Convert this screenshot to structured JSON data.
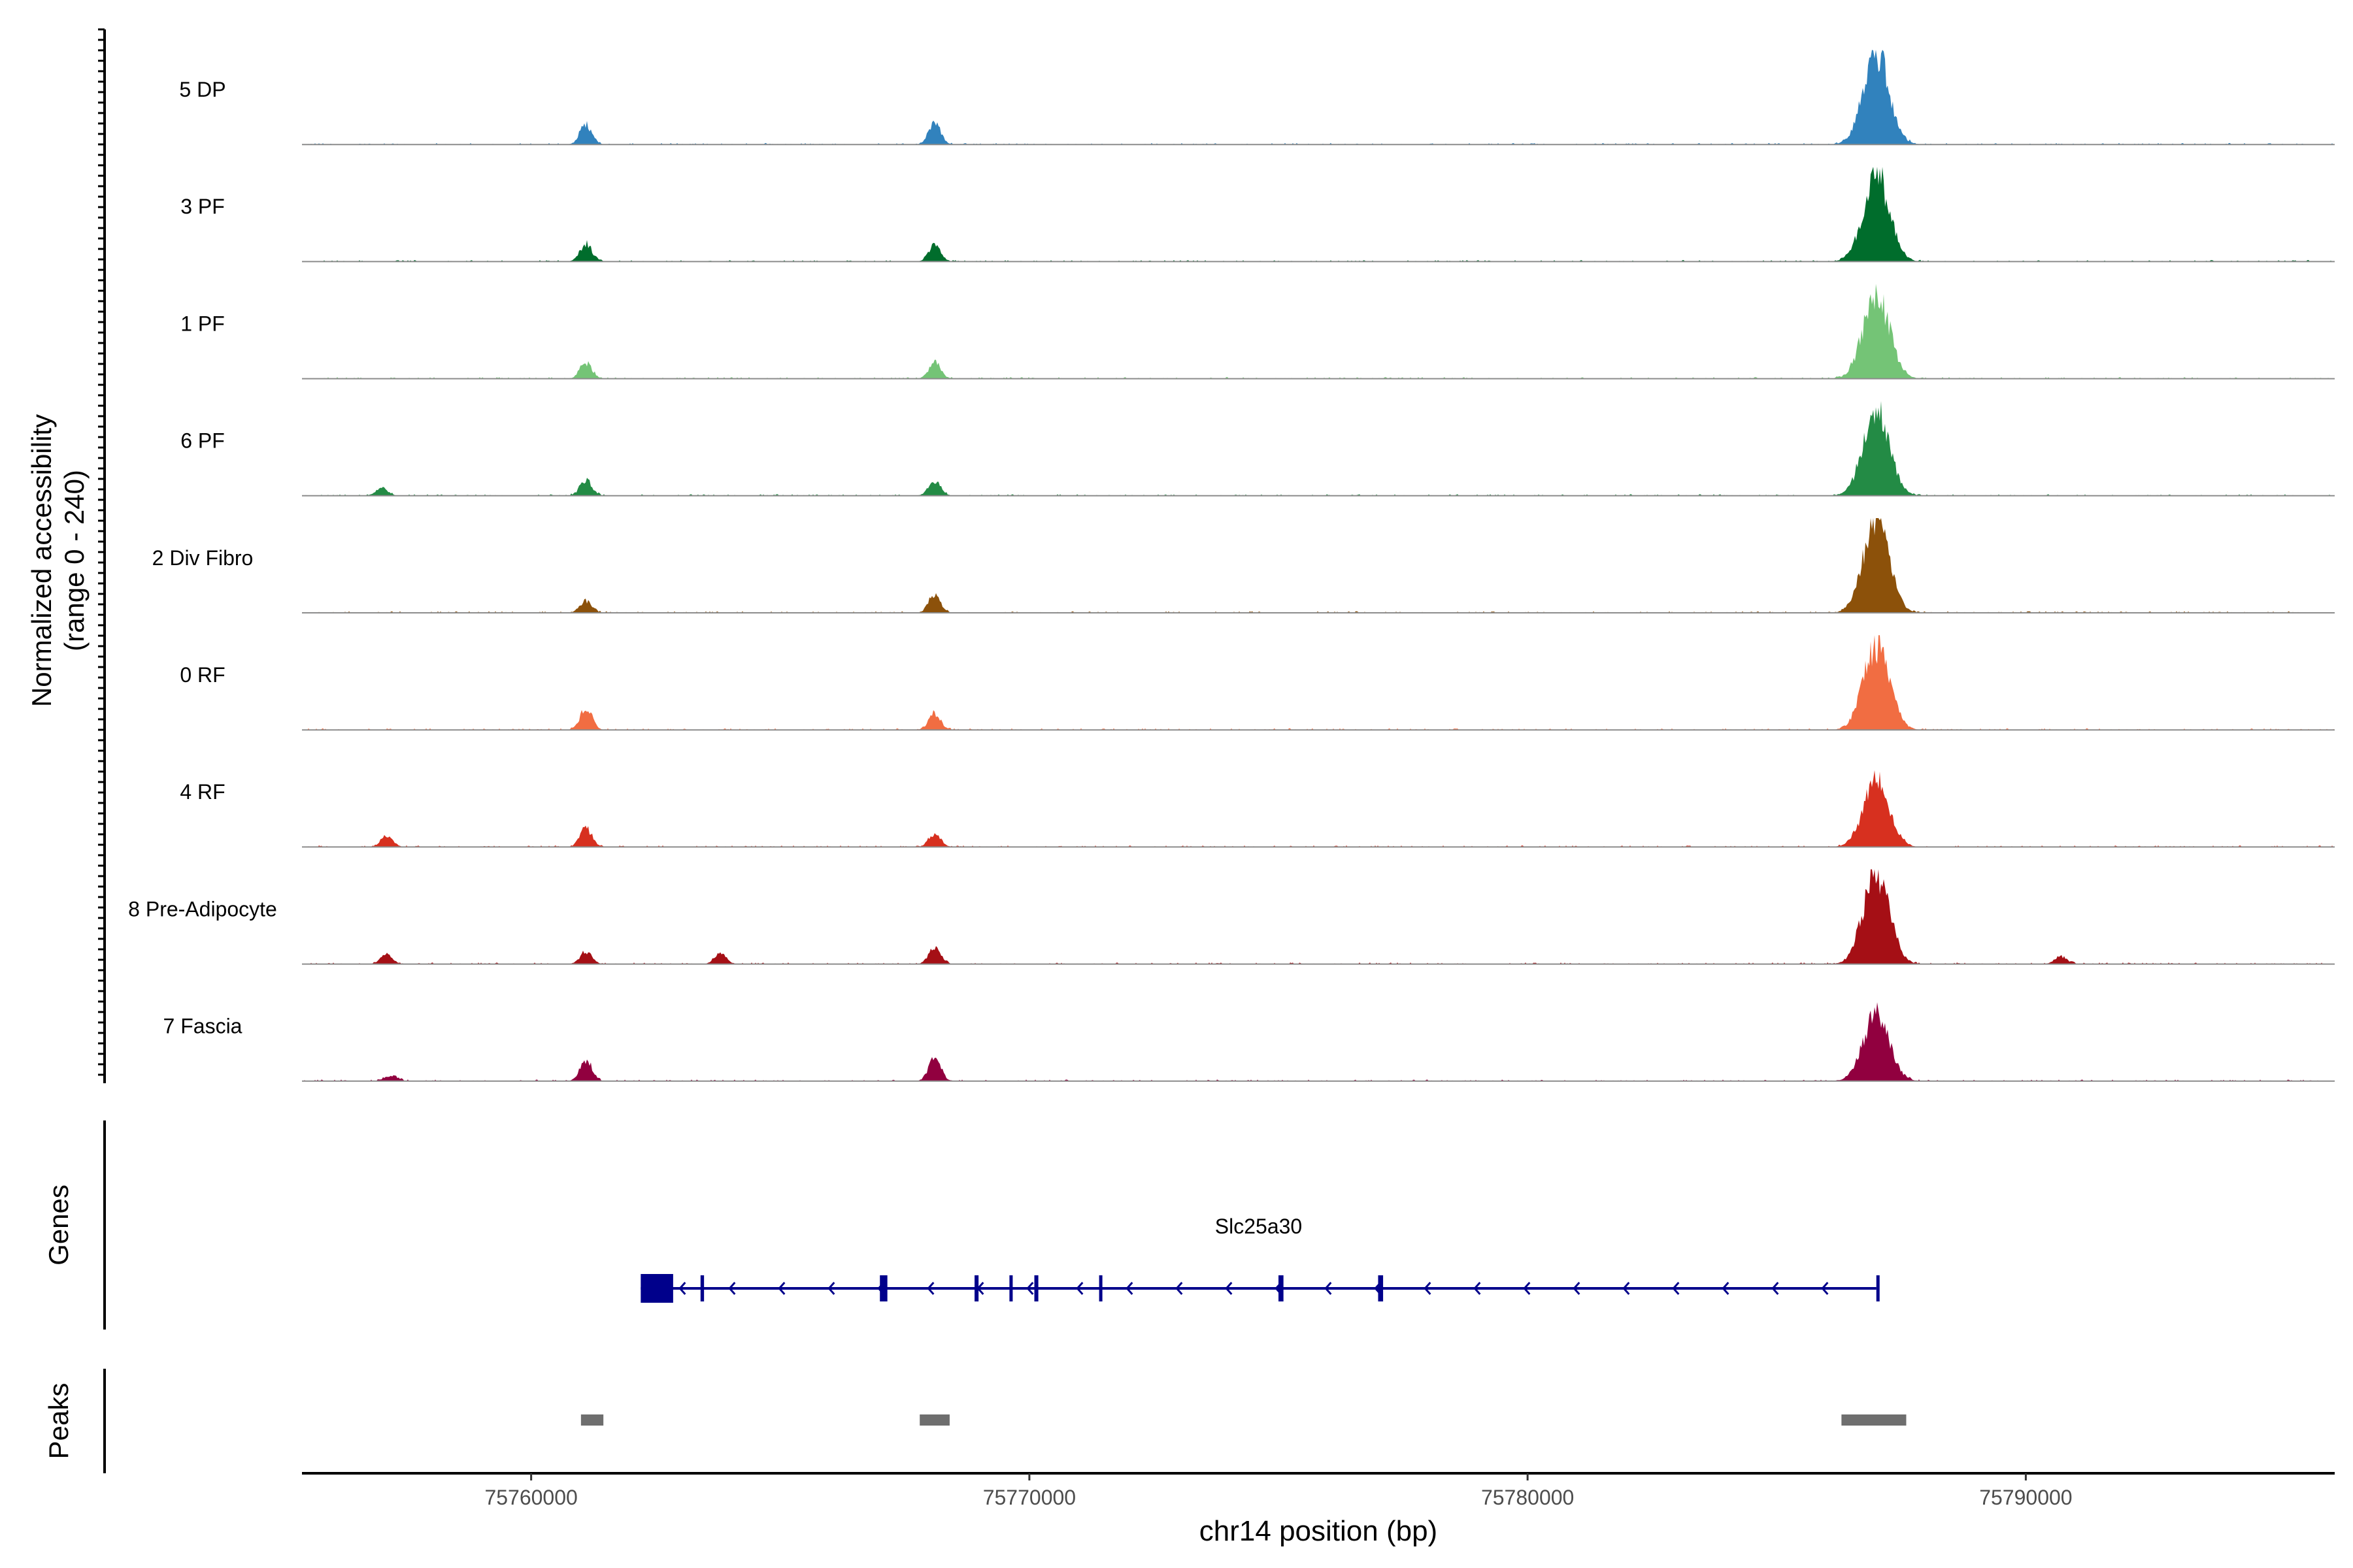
{
  "chart_data": {
    "type": "area",
    "ylabel_line1": "Normalized accessibility",
    "ylabel_line2": "(range 0 - 240)",
    "xlabel": "chr14 position (bp)",
    "ylim": [
      0,
      240
    ],
    "xlim": [
      75755400,
      75796200
    ],
    "x_ticks": [
      75760000,
      75770000,
      75780000,
      75790000
    ],
    "x_tick_labels": [
      "75760000",
      "75770000",
      "75780000",
      "75790000"
    ],
    "tracks": [
      {
        "name": "5 DP",
        "color": "#3182BD",
        "peaks": [
          [
            75761100,
            50
          ],
          [
            75768100,
            55
          ],
          [
            75787000,
            230
          ]
        ]
      },
      {
        "name": "3 PF",
        "color": "#006D2C",
        "peaks": [
          [
            75761100,
            45
          ],
          [
            75768100,
            42
          ],
          [
            75787000,
            220
          ]
        ]
      },
      {
        "name": "1 PF",
        "color": "#74C476",
        "peaks": [
          [
            75761100,
            40
          ],
          [
            75768100,
            40
          ],
          [
            75787000,
            215
          ]
        ]
      },
      {
        "name": "6 PF",
        "color": "#238B45",
        "peaks": [
          [
            75757000,
            20
          ],
          [
            75761100,
            38
          ],
          [
            75768100,
            38
          ],
          [
            75787000,
            220
          ]
        ]
      },
      {
        "name": "2 Div Fibro",
        "color": "#8C510A",
        "peaks": [
          [
            75761100,
            30
          ],
          [
            75768100,
            45
          ],
          [
            75787000,
            225
          ]
        ]
      },
      {
        "name": "0 RF",
        "color": "#F16D42",
        "peaks": [
          [
            75761100,
            55
          ],
          [
            75768100,
            40
          ],
          [
            75787000,
            210
          ]
        ]
      },
      {
        "name": "4 RF",
        "color": "#D7301F",
        "peaks": [
          [
            75757100,
            30
          ],
          [
            75761100,
            48
          ],
          [
            75768100,
            35
          ],
          [
            75787000,
            165
          ]
        ]
      },
      {
        "name": "8 Pre-Adipocyte",
        "color": "#A50F15",
        "peaks": [
          [
            75757100,
            25
          ],
          [
            75761100,
            30
          ],
          [
            75763800,
            25
          ],
          [
            75768100,
            40
          ],
          [
            75787000,
            230
          ],
          [
            75790700,
            20
          ]
        ]
      },
      {
        "name": "7 Fascia",
        "color": "#91003F",
        "peaks": [
          [
            75757200,
            15
          ],
          [
            75761100,
            55
          ],
          [
            75768100,
            60
          ],
          [
            75787000,
            170
          ]
        ]
      }
    ],
    "genes_label": "Genes",
    "gene": {
      "name": "Slc25a30",
      "start": 75762200,
      "end": 75787000,
      "strand": "-",
      "exons": [
        [
          75762200,
          75762850
        ],
        [
          75763400,
          75763470
        ],
        [
          75767000,
          75767150
        ],
        [
          75768900,
          75768980
        ],
        [
          75769600,
          75769660
        ],
        [
          75770100,
          75770180
        ],
        [
          75771400,
          75771460
        ],
        [
          75775000,
          75775100
        ],
        [
          75777000,
          75777100
        ],
        [
          75787000,
          75787060
        ]
      ]
    },
    "peaks_label": "Peaks",
    "peak_regions": [
      [
        75761000,
        75761450
      ],
      [
        75767800,
        75768400
      ],
      [
        75786300,
        75787600
      ]
    ]
  }
}
